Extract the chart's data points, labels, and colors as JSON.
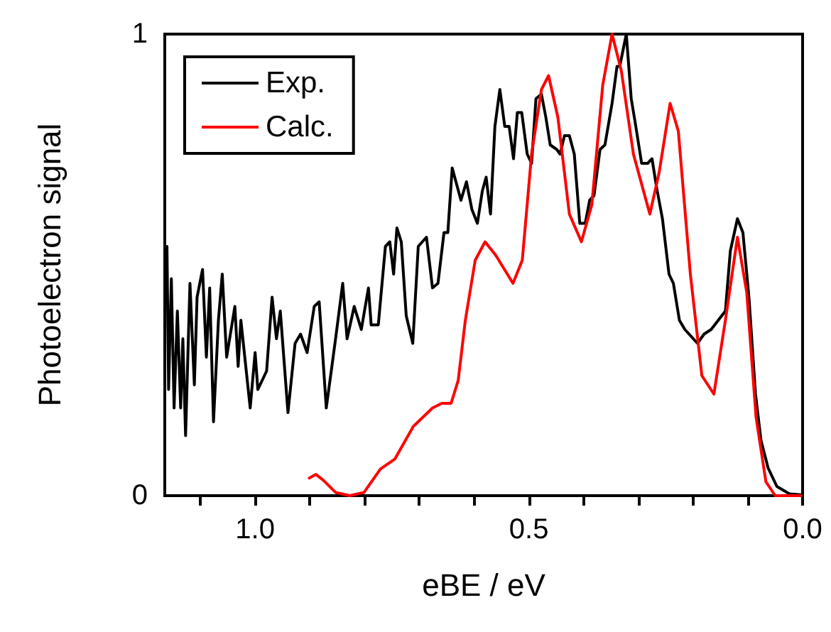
{
  "chart_data": {
    "type": "line",
    "xlabel": "eBE / eV",
    "ylabel": "Photoelectron signal",
    "xlim": [
      1.165,
      0
    ],
    "ylim": [
      0,
      1
    ],
    "xticks": [
      {
        "value": 1.1,
        "label": null
      },
      {
        "value": 1,
        "label": "1.0"
      },
      {
        "value": 0.9,
        "label": null
      },
      {
        "value": 0.8,
        "label": null
      },
      {
        "value": 0.7,
        "label": null
      },
      {
        "value": 0.6,
        "label": null
      },
      {
        "value": 0.5,
        "label": "0.5"
      },
      {
        "value": 0.4,
        "label": null
      },
      {
        "value": 0.3,
        "label": null
      },
      {
        "value": 0.2,
        "label": null
      },
      {
        "value": 0.1,
        "label": null
      },
      {
        "value": 0,
        "label": "0.0"
      }
    ],
    "yticks": [
      0,
      1
    ],
    "grid": false,
    "legend": "top left",
    "marker": "none",
    "line_style": "solid",
    "series": [
      {
        "name": "Exp.",
        "color": "#000000",
        "x": [
          1.161,
          1.158,
          1.153,
          1.148,
          1.142,
          1.136,
          1.132,
          1.127,
          1.119,
          1.111,
          1.106,
          1.096,
          1.089,
          1.083,
          1.076,
          1.067,
          1.06,
          1.052,
          1.037,
          1.031,
          1.026,
          1.009,
          1.0,
          0.995,
          0.979,
          0.969,
          0.961,
          0.954,
          0.94,
          0.927,
          0.917,
          0.905,
          0.892,
          0.883,
          0.87,
          0.853,
          0.84,
          0.832,
          0.819,
          0.806,
          0.793,
          0.788,
          0.775,
          0.762,
          0.754,
          0.747,
          0.741,
          0.733,
          0.724,
          0.712,
          0.702,
          0.687,
          0.676,
          0.666,
          0.655,
          0.648,
          0.64,
          0.624,
          0.614,
          0.604,
          0.594,
          0.585,
          0.578,
          0.57,
          0.562,
          0.553,
          0.544,
          0.536,
          0.528,
          0.521,
          0.513,
          0.503,
          0.495,
          0.487,
          0.477,
          0.469,
          0.461,
          0.449,
          0.443,
          0.435,
          0.426,
          0.417,
          0.407,
          0.397,
          0.389,
          0.381,
          0.37,
          0.361,
          0.348,
          0.339,
          0.334,
          0.322,
          0.313,
          0.306,
          0.294,
          0.283,
          0.275,
          0.267,
          0.256,
          0.244,
          0.236,
          0.225,
          0.215,
          0.192,
          0.18,
          0.167,
          0.154,
          0.141,
          0.132,
          0.119,
          0.109,
          0.098,
          0.086,
          0.076,
          0.063,
          0.047,
          0.024,
          0.003
        ],
        "values": [
          0.54,
          0.23,
          0.47,
          0.19,
          0.4,
          0.19,
          0.34,
          0.13,
          0.46,
          0.24,
          0.43,
          0.49,
          0.3,
          0.45,
          0.16,
          0.38,
          0.48,
          0.3,
          0.41,
          0.28,
          0.38,
          0.19,
          0.31,
          0.23,
          0.27,
          0.43,
          0.34,
          0.4,
          0.18,
          0.33,
          0.35,
          0.31,
          0.41,
          0.42,
          0.19,
          0.34,
          0.46,
          0.34,
          0.41,
          0.36,
          0.45,
          0.37,
          0.37,
          0.54,
          0.55,
          0.48,
          0.58,
          0.55,
          0.39,
          0.33,
          0.54,
          0.56,
          0.45,
          0.46,
          0.57,
          0.57,
          0.71,
          0.64,
          0.68,
          0.62,
          0.59,
          0.66,
          0.69,
          0.61,
          0.8,
          0.88,
          0.8,
          0.8,
          0.73,
          0.83,
          0.83,
          0.74,
          0.72,
          0.86,
          0.87,
          0.82,
          0.76,
          0.75,
          0.74,
          0.78,
          0.78,
          0.74,
          0.59,
          0.59,
          0.64,
          0.65,
          0.75,
          0.76,
          0.85,
          0.93,
          0.93,
          1.0,
          0.86,
          0.81,
          0.72,
          0.72,
          0.73,
          0.67,
          0.6,
          0.48,
          0.46,
          0.38,
          0.36,
          0.33,
          0.35,
          0.36,
          0.38,
          0.4,
          0.53,
          0.6,
          0.57,
          0.43,
          0.22,
          0.12,
          0.06,
          0.02,
          0.004,
          0.002
        ]
      },
      {
        "name": "Calc.",
        "color": "#ff0000",
        "x": [
          0.901,
          0.889,
          0.876,
          0.853,
          0.827,
          0.801,
          0.771,
          0.745,
          0.711,
          0.676,
          0.659,
          0.642,
          0.629,
          0.616,
          0.598,
          0.58,
          0.56,
          0.529,
          0.512,
          0.495,
          0.477,
          0.464,
          0.447,
          0.426,
          0.404,
          0.385,
          0.365,
          0.348,
          0.331,
          0.309,
          0.279,
          0.262,
          0.242,
          0.227,
          0.205,
          0.184,
          0.162,
          0.141,
          0.119,
          0.102,
          0.085,
          0.067,
          0.05,
          0.003
        ],
        "values": [
          0.038,
          0.046,
          0.034,
          0.007,
          0,
          0.007,
          0.058,
          0.079,
          0.15,
          0.19,
          0.2,
          0.2,
          0.25,
          0.38,
          0.51,
          0.55,
          0.52,
          0.46,
          0.51,
          0.74,
          0.88,
          0.91,
          0.82,
          0.61,
          0.55,
          0.63,
          0.89,
          1.0,
          0.92,
          0.74,
          0.61,
          0.7,
          0.85,
          0.79,
          0.48,
          0.26,
          0.22,
          0.38,
          0.56,
          0.44,
          0.17,
          0.03,
          0,
          0
        ]
      }
    ]
  }
}
